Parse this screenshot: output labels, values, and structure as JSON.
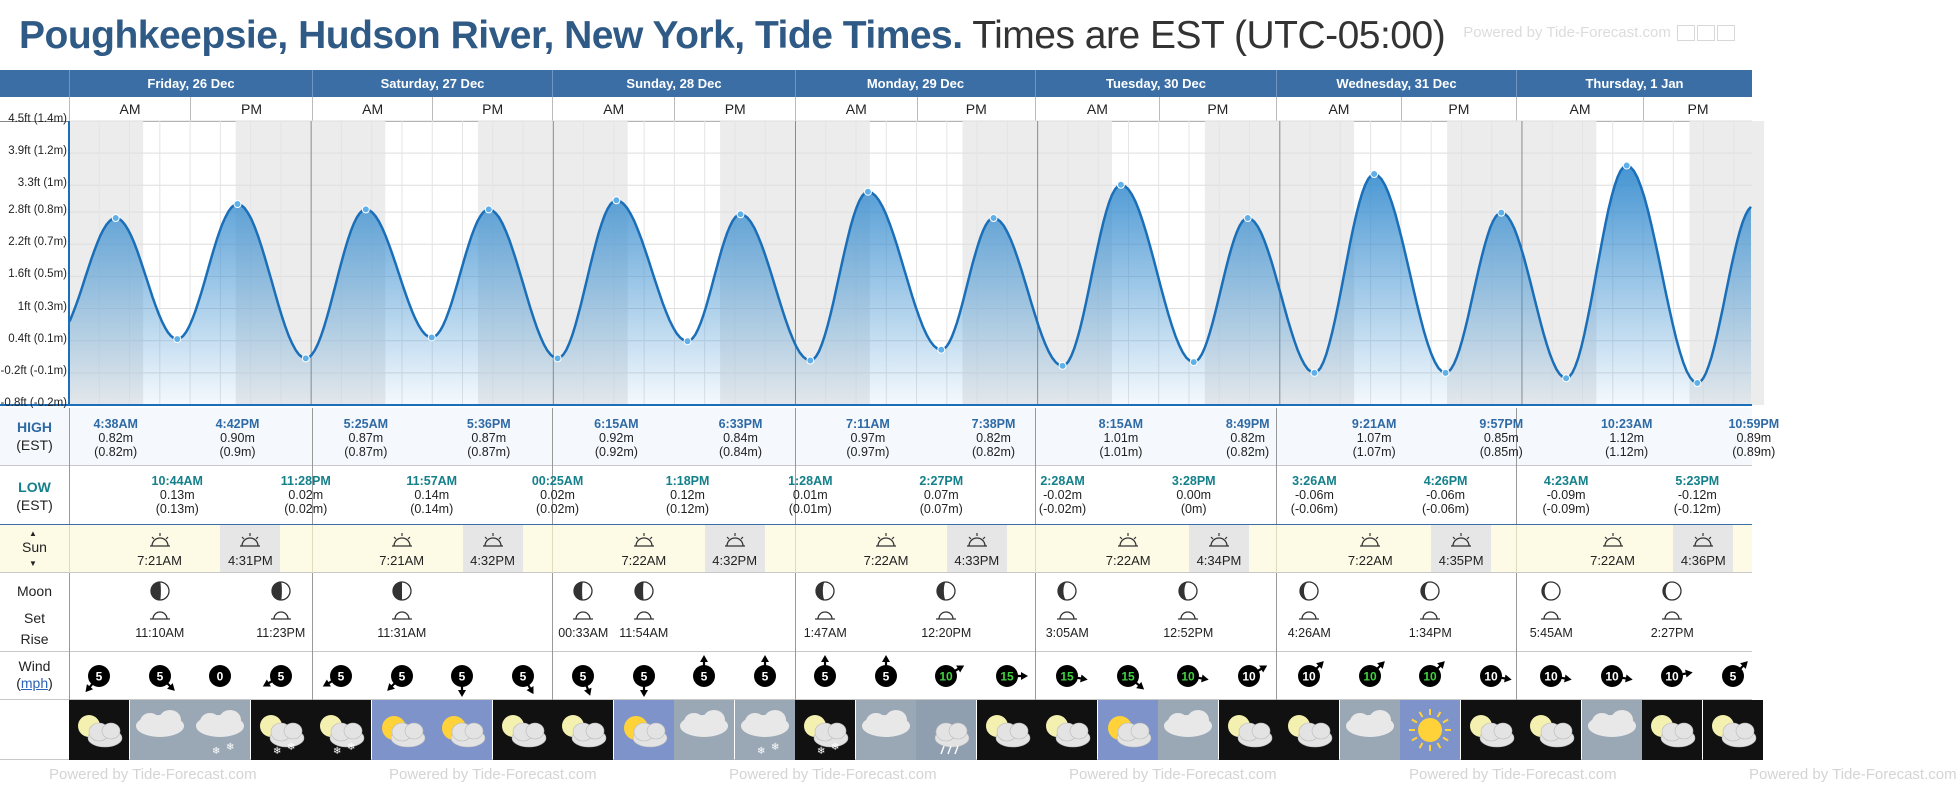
{
  "header": {
    "title_bold": "Poughkeepsie, Hudson River, New York, Tide Times.",
    "title_rest": "Times are EST (UTC-05:00)",
    "powered_by": "Powered by Tide-Forecast.com"
  },
  "days": [
    {
      "label": "Friday, 26 Dec"
    },
    {
      "label": "Saturday, 27 Dec"
    },
    {
      "label": "Sunday, 28 Dec"
    },
    {
      "label": "Monday, 29 Dec"
    },
    {
      "label": "Tuesday, 30 Dec"
    },
    {
      "label": "Wednesday, 31 Dec"
    },
    {
      "label": "Thursday, 1 Jan"
    }
  ],
  "am_label": "AM",
  "pm_label": "PM",
  "colors": {
    "header_blue": "#3a6ea5",
    "tide_fill": "#3b8fd0",
    "tide_line": "#1a6fb8",
    "night_shade": "#ececec",
    "sun_row": "#fdfbe6"
  },
  "chart_data": {
    "type": "area",
    "x_unit": "hours from Fri 26 Dec 00:00 EST",
    "ylim": [
      -0.8,
      4.5
    ],
    "y_unit": "ft",
    "y_ticks": [
      {
        "value": 4.5,
        "label": "4.5ft (1.4m)"
      },
      {
        "value": 3.9,
        "label": "3.9ft (1.2m)"
      },
      {
        "value": 3.3,
        "label": "3.3ft (1m)"
      },
      {
        "value": 2.8,
        "label": "2.8ft (0.8m)"
      },
      {
        "value": 2.2,
        "label": "2.2ft (0.7m)"
      },
      {
        "value": 1.6,
        "label": "1.6ft (0.5m)"
      },
      {
        "value": 1.0,
        "label": "1ft (0.3m)"
      },
      {
        "value": 0.4,
        "label": "0.4ft (0.1m)"
      },
      {
        "value": -0.2,
        "label": "-0.2ft (-0.1m)"
      },
      {
        "value": -0.8,
        "label": "-0.8ft (-0.2m)"
      }
    ],
    "extremes": [
      {
        "t": 4.63,
        "ft": 2.69
      },
      {
        "t": 10.73,
        "ft": 0.43
      },
      {
        "t": 16.7,
        "ft": 2.95
      },
      {
        "t": 23.47,
        "ft": 0.07
      },
      {
        "t": 29.42,
        "ft": 2.85
      },
      {
        "t": 35.95,
        "ft": 0.46
      },
      {
        "t": 41.6,
        "ft": 2.85
      },
      {
        "t": 48.42,
        "ft": 0.07
      },
      {
        "t": 54.25,
        "ft": 3.02
      },
      {
        "t": 61.3,
        "ft": 0.39
      },
      {
        "t": 66.55,
        "ft": 2.76
      },
      {
        "t": 73.47,
        "ft": 0.03
      },
      {
        "t": 79.18,
        "ft": 3.18
      },
      {
        "t": 86.45,
        "ft": 0.23
      },
      {
        "t": 91.63,
        "ft": 2.69
      },
      {
        "t": 98.47,
        "ft": -0.07
      },
      {
        "t": 104.25,
        "ft": 3.31
      },
      {
        "t": 111.47,
        "ft": 0.0
      },
      {
        "t": 116.82,
        "ft": 2.69
      },
      {
        "t": 123.43,
        "ft": -0.2
      },
      {
        "t": 129.35,
        "ft": 3.51
      },
      {
        "t": 136.43,
        "ft": -0.2
      },
      {
        "t": 141.95,
        "ft": 2.79
      },
      {
        "t": 148.38,
        "ft": -0.3
      },
      {
        "t": 154.38,
        "ft": 3.67
      },
      {
        "t": 161.38,
        "ft": -0.39
      },
      {
        "t": 166.98,
        "ft": 2.92
      }
    ]
  },
  "rows": {
    "high_label": "HIGH",
    "high_sub": "(EST)",
    "low_label": "LOW",
    "low_sub": "(EST)",
    "sun_label": "Sun",
    "moon_label": "Moon",
    "moon_set": "Set",
    "moon_rise": "Rise",
    "wind_label": "Wind",
    "wind_unit": "mph"
  },
  "highs": [
    {
      "t": 4.63,
      "time": "4:38AM",
      "m": "0.82m",
      "mm": "(0.82m)"
    },
    {
      "t": 16.7,
      "time": "4:42PM",
      "m": "0.90m",
      "mm": "(0.9m)"
    },
    {
      "t": 29.42,
      "time": "5:25AM",
      "m": "0.87m",
      "mm": "(0.87m)"
    },
    {
      "t": 41.6,
      "time": "5:36PM",
      "m": "0.87m",
      "mm": "(0.87m)"
    },
    {
      "t": 54.25,
      "time": "6:15AM",
      "m": "0.92m",
      "mm": "(0.92m)"
    },
    {
      "t": 66.55,
      "time": "6:33PM",
      "m": "0.84m",
      "mm": "(0.84m)"
    },
    {
      "t": 79.18,
      "time": "7:11AM",
      "m": "0.97m",
      "mm": "(0.97m)"
    },
    {
      "t": 91.63,
      "time": "7:38PM",
      "m": "0.82m",
      "mm": "(0.82m)"
    },
    {
      "t": 104.25,
      "time": "8:15AM",
      "m": "1.01m",
      "mm": "(1.01m)"
    },
    {
      "t": 116.82,
      "time": "8:49PM",
      "m": "0.82m",
      "mm": "(0.82m)"
    },
    {
      "t": 129.35,
      "time": "9:21AM",
      "m": "1.07m",
      "mm": "(1.07m)"
    },
    {
      "t": 141.95,
      "time": "9:57PM",
      "m": "0.85m",
      "mm": "(0.85m)"
    },
    {
      "t": 154.38,
      "time": "10:23AM",
      "m": "1.12m",
      "mm": "(1.12m)"
    },
    {
      "t": 166.98,
      "time": "10:59PM",
      "m": "0.89m",
      "mm": "(0.89m)"
    }
  ],
  "lows": [
    {
      "t": 10.73,
      "time": "10:44AM",
      "m": "0.13m",
      "mm": "(0.13m)"
    },
    {
      "t": 23.47,
      "time": "11:28PM",
      "m": "0.02m",
      "mm": "(0.02m)"
    },
    {
      "t": 35.95,
      "time": "11:57AM",
      "m": "0.14m",
      "mm": "(0.14m)"
    },
    {
      "t": 48.42,
      "time": "00:25AM",
      "m": "0.02m",
      "mm": "(0.02m)"
    },
    {
      "t": 61.3,
      "time": "1:18PM",
      "m": "0.12m",
      "mm": "(0.12m)"
    },
    {
      "t": 73.47,
      "time": "1:28AM",
      "m": "0.01m",
      "mm": "(0.01m)"
    },
    {
      "t": 86.45,
      "time": "2:27PM",
      "m": "0.07m",
      "mm": "(0.07m)"
    },
    {
      "t": 98.47,
      "time": "2:28AM",
      "m": "-0.02m",
      "mm": "(-0.02m)"
    },
    {
      "t": 111.47,
      "time": "3:28PM",
      "m": "0.00m",
      "mm": "(0m)"
    },
    {
      "t": 123.43,
      "time": "3:26AM",
      "m": "-0.06m",
      "mm": "(-0.06m)"
    },
    {
      "t": 136.43,
      "time": "4:26PM",
      "m": "-0.06m",
      "mm": "(-0.06m)"
    },
    {
      "t": 148.38,
      "time": "4:23AM",
      "m": "-0.09m",
      "mm": "(-0.09m)"
    },
    {
      "t": 161.38,
      "time": "5:23PM",
      "m": "-0.12m",
      "mm": "(-0.12m)"
    }
  ],
  "sun": [
    {
      "rise": "7:21AM",
      "set": "4:31PM",
      "rise_t": 7.35,
      "set_t": 16.52
    },
    {
      "rise": "7:21AM",
      "set": "4:32PM",
      "rise_t": 31.35,
      "set_t": 40.53
    },
    {
      "rise": "7:22AM",
      "set": "4:32PM",
      "rise_t": 55.37,
      "set_t": 64.53
    },
    {
      "rise": "7:22AM",
      "set": "4:33PM",
      "rise_t": 79.37,
      "set_t": 88.55
    },
    {
      "rise": "7:22AM",
      "set": "4:34PM",
      "rise_t": 103.37,
      "set_t": 112.57
    },
    {
      "rise": "7:22AM",
      "set": "4:35PM",
      "rise_t": 127.37,
      "set_t": 136.58
    },
    {
      "rise": "7:22AM",
      "set": "4:36PM",
      "rise_t": 151.37,
      "set_t": 160.6
    }
  ],
  "moon": [
    {
      "slot": 1,
      "time": "11:10AM",
      "icon": "moon-set-icon",
      "phase": 0.55
    },
    {
      "slot": 3,
      "time": "11:23PM",
      "icon": "moon-rise-icon",
      "phase": 0.55
    },
    {
      "slot": 5,
      "time": "11:31AM",
      "icon": "moon-set-icon",
      "phase": 0.5
    },
    {
      "slot": 8,
      "time": "00:33AM",
      "icon": "moon-rise-icon",
      "phase": 0.45
    },
    {
      "slot": 9,
      "time": "11:54AM",
      "icon": "moon-set-icon",
      "phase": 0.45
    },
    {
      "slot": 12,
      "time": "1:47AM",
      "icon": "moon-rise-icon",
      "phase": 0.38
    },
    {
      "slot": 14,
      "time": "12:20PM",
      "icon": "moon-set-icon",
      "phase": 0.38
    },
    {
      "slot": 16,
      "time": "3:05AM",
      "icon": "moon-rise-icon",
      "phase": 0.3
    },
    {
      "slot": 18,
      "time": "12:52PM",
      "icon": "moon-set-icon",
      "phase": 0.3
    },
    {
      "slot": 20,
      "time": "4:26AM",
      "icon": "moon-rise-icon",
      "phase": 0.22
    },
    {
      "slot": 22,
      "time": "1:34PM",
      "icon": "moon-set-icon",
      "phase": 0.22
    },
    {
      "slot": 24,
      "time": "5:45AM",
      "icon": "moon-rise-icon",
      "phase": 0.15
    },
    {
      "slot": 26,
      "time": "2:27PM",
      "icon": "moon-set-icon",
      "phase": 0.15
    }
  ],
  "wind": [
    {
      "speed": "5",
      "dir": 220,
      "color": "#000",
      "tc": "#fff"
    },
    {
      "speed": "5",
      "dir": 135,
      "color": "#000",
      "tc": "#fff"
    },
    {
      "speed": "0",
      "dir": -1,
      "color": "#000",
      "tc": "#fff"
    },
    {
      "speed": "5",
      "dir": 240,
      "color": "#000",
      "tc": "#fff"
    },
    {
      "speed": "5",
      "dir": 240,
      "color": "#000",
      "tc": "#fff"
    },
    {
      "speed": "5",
      "dir": 225,
      "color": "#000",
      "tc": "#fff"
    },
    {
      "speed": "5",
      "dir": 180,
      "color": "#000",
      "tc": "#fff"
    },
    {
      "speed": "5",
      "dir": 150,
      "color": "#000",
      "tc": "#fff"
    },
    {
      "speed": "5",
      "dir": 160,
      "color": "#000",
      "tc": "#fff"
    },
    {
      "speed": "5",
      "dir": 180,
      "color": "#000",
      "tc": "#fff"
    },
    {
      "speed": "5",
      "dir": 0,
      "color": "#000",
      "tc": "#fff"
    },
    {
      "speed": "5",
      "dir": 0,
      "color": "#000",
      "tc": "#fff"
    },
    {
      "speed": "5",
      "dir": 0,
      "color": "#000",
      "tc": "#fff"
    },
    {
      "speed": "5",
      "dir": 0,
      "color": "#000",
      "tc": "#fff"
    },
    {
      "speed": "10",
      "dir": 60,
      "color": "#000",
      "tc": "#3fd23f"
    },
    {
      "speed": "15",
      "dir": 90,
      "color": "#000",
      "tc": "#3fd23f"
    },
    {
      "speed": "15",
      "dir": 100,
      "color": "#000",
      "tc": "#3fd23f"
    },
    {
      "speed": "15",
      "dir": 130,
      "color": "#000",
      "tc": "#3fd23f"
    },
    {
      "speed": "10",
      "dir": 100,
      "color": "#000",
      "tc": "#3fd23f"
    },
    {
      "speed": "10",
      "dir": 60,
      "color": "#000",
      "tc": "#fff"
    },
    {
      "speed": "10",
      "dir": 45,
      "color": "#000",
      "tc": "#fff"
    },
    {
      "speed": "10",
      "dir": 45,
      "color": "#000",
      "tc": "#3fd23f"
    },
    {
      "speed": "10",
      "dir": 45,
      "color": "#000",
      "tc": "#3fd23f"
    },
    {
      "speed": "10",
      "dir": 100,
      "color": "#000",
      "tc": "#fff"
    },
    {
      "speed": "10",
      "dir": 100,
      "color": "#000",
      "tc": "#fff"
    },
    {
      "speed": "10",
      "dir": 100,
      "color": "#000",
      "tc": "#fff"
    },
    {
      "speed": "10",
      "dir": 80,
      "color": "#000",
      "tc": "#fff"
    },
    {
      "speed": "5",
      "dir": 45,
      "color": "#000",
      "tc": "#fff"
    }
  ],
  "weather": [
    "night-cloudy",
    "cloudy",
    "snow-cloudy",
    "snow-night",
    "snow-night",
    "sunny-cloudy",
    "sunny-cloudy",
    "night-cloudy",
    "night-cloudy",
    "sunny-cloudy-day",
    "cloudy",
    "snow-cloudy",
    "snow-night",
    "cloudy",
    "rain-cloudy",
    "night-cloudy",
    "night-cloudy",
    "sunny-cloudy",
    "cloudy",
    "night-cloudy",
    "night-cloudy",
    "cloudy",
    "sunny",
    "night-cloudy",
    "night-cloudy",
    "cloudy",
    "night-cloudy",
    "night-cloudy"
  ]
}
